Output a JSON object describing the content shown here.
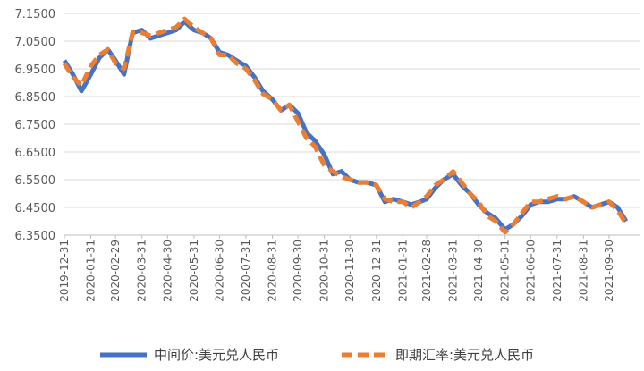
{
  "chart_data": {
    "type": "line",
    "title": "",
    "xlabel": "",
    "ylabel": "",
    "ylim": [
      6.35,
      7.15
    ],
    "y_ticks": [
      "7.1500",
      "7.0500",
      "6.9500",
      "6.8500",
      "6.7500",
      "6.6500",
      "6.5500",
      "6.4500",
      "6.3500"
    ],
    "x_ticks": [
      "2019-12-31",
      "2020-01-31",
      "2020-02-29",
      "2020-03-31",
      "2020-04-30",
      "2020-05-31",
      "2020-06-30",
      "2020-07-31",
      "2020-08-31",
      "2020-09-30",
      "2020-10-31",
      "2020-11-30",
      "2020-12-31",
      "2021-01-31",
      "2021-02-28",
      "2021-03-31",
      "2021-04-30",
      "2021-05-31",
      "2021-06-30",
      "2021-07-31",
      "2021-08-31",
      "2021-09-30"
    ],
    "grid": "horizontal",
    "legend_position": "bottom",
    "x": [
      "2019-12-31",
      "2020-01-10",
      "2020-01-20",
      "2020-01-31",
      "2020-02-10",
      "2020-02-20",
      "2020-02-29",
      "2020-03-10",
      "2020-03-20",
      "2020-03-31",
      "2020-04-10",
      "2020-04-20",
      "2020-04-30",
      "2020-05-10",
      "2020-05-20",
      "2020-05-31",
      "2020-06-10",
      "2020-06-20",
      "2020-06-30",
      "2020-07-10",
      "2020-07-20",
      "2020-07-31",
      "2020-08-10",
      "2020-08-20",
      "2020-08-31",
      "2020-09-10",
      "2020-09-20",
      "2020-09-30",
      "2020-10-10",
      "2020-10-20",
      "2020-10-31",
      "2020-11-10",
      "2020-11-20",
      "2020-11-30",
      "2020-12-10",
      "2020-12-20",
      "2020-12-31",
      "2021-01-10",
      "2021-01-20",
      "2021-01-31",
      "2021-02-10",
      "2021-02-20",
      "2021-02-28",
      "2021-03-10",
      "2021-03-20",
      "2021-03-31",
      "2021-04-10",
      "2021-04-20",
      "2021-04-30",
      "2021-05-10",
      "2021-05-20",
      "2021-05-31",
      "2021-06-10",
      "2021-06-20",
      "2021-06-30",
      "2021-07-10",
      "2021-07-20",
      "2021-07-31",
      "2021-08-10",
      "2021-08-20",
      "2021-08-31",
      "2021-09-10",
      "2021-09-20",
      "2021-09-30",
      "2021-10-10",
      "2021-10-20"
    ],
    "series": [
      {
        "name": "中间价:美元兑人民币",
        "color": "#4472C4",
        "values": [
          6.98,
          6.93,
          6.87,
          6.93,
          6.99,
          7.02,
          6.98,
          6.93,
          7.08,
          7.09,
          7.06,
          7.07,
          7.08,
          7.09,
          7.12,
          7.09,
          7.08,
          7.06,
          7.01,
          7.0,
          6.98,
          6.96,
          6.92,
          6.87,
          6.84,
          6.8,
          6.82,
          6.79,
          6.72,
          6.69,
          6.64,
          6.57,
          6.58,
          6.55,
          6.54,
          6.54,
          6.53,
          6.47,
          6.48,
          6.47,
          6.46,
          6.47,
          6.48,
          6.52,
          6.55,
          6.57,
          6.53,
          6.5,
          6.46,
          6.43,
          6.41,
          6.37,
          6.39,
          6.42,
          6.46,
          6.47,
          6.47,
          6.48,
          6.48,
          6.49,
          6.47,
          6.45,
          6.46,
          6.47,
          6.45,
          6.4
        ]
      },
      {
        "name": "即期汇率:美元兑人民币",
        "color": "#ED7D31",
        "values": [
          6.97,
          6.92,
          6.89,
          6.96,
          7.0,
          7.02,
          6.97,
          6.95,
          7.08,
          7.08,
          7.07,
          7.08,
          7.09,
          7.1,
          7.13,
          7.1,
          7.08,
          7.06,
          7.0,
          7.0,
          6.97,
          6.95,
          6.91,
          6.86,
          6.84,
          6.8,
          6.82,
          6.76,
          6.7,
          6.67,
          6.6,
          6.58,
          6.56,
          6.55,
          6.54,
          6.54,
          6.53,
          6.48,
          6.47,
          6.47,
          6.45,
          6.47,
          6.49,
          6.53,
          6.55,
          6.58,
          6.54,
          6.5,
          6.47,
          6.42,
          6.4,
          6.36,
          6.39,
          6.43,
          6.47,
          6.47,
          6.48,
          6.49,
          6.48,
          6.49,
          6.47,
          6.45,
          6.46,
          6.47,
          6.44,
          6.39
        ]
      }
    ]
  }
}
